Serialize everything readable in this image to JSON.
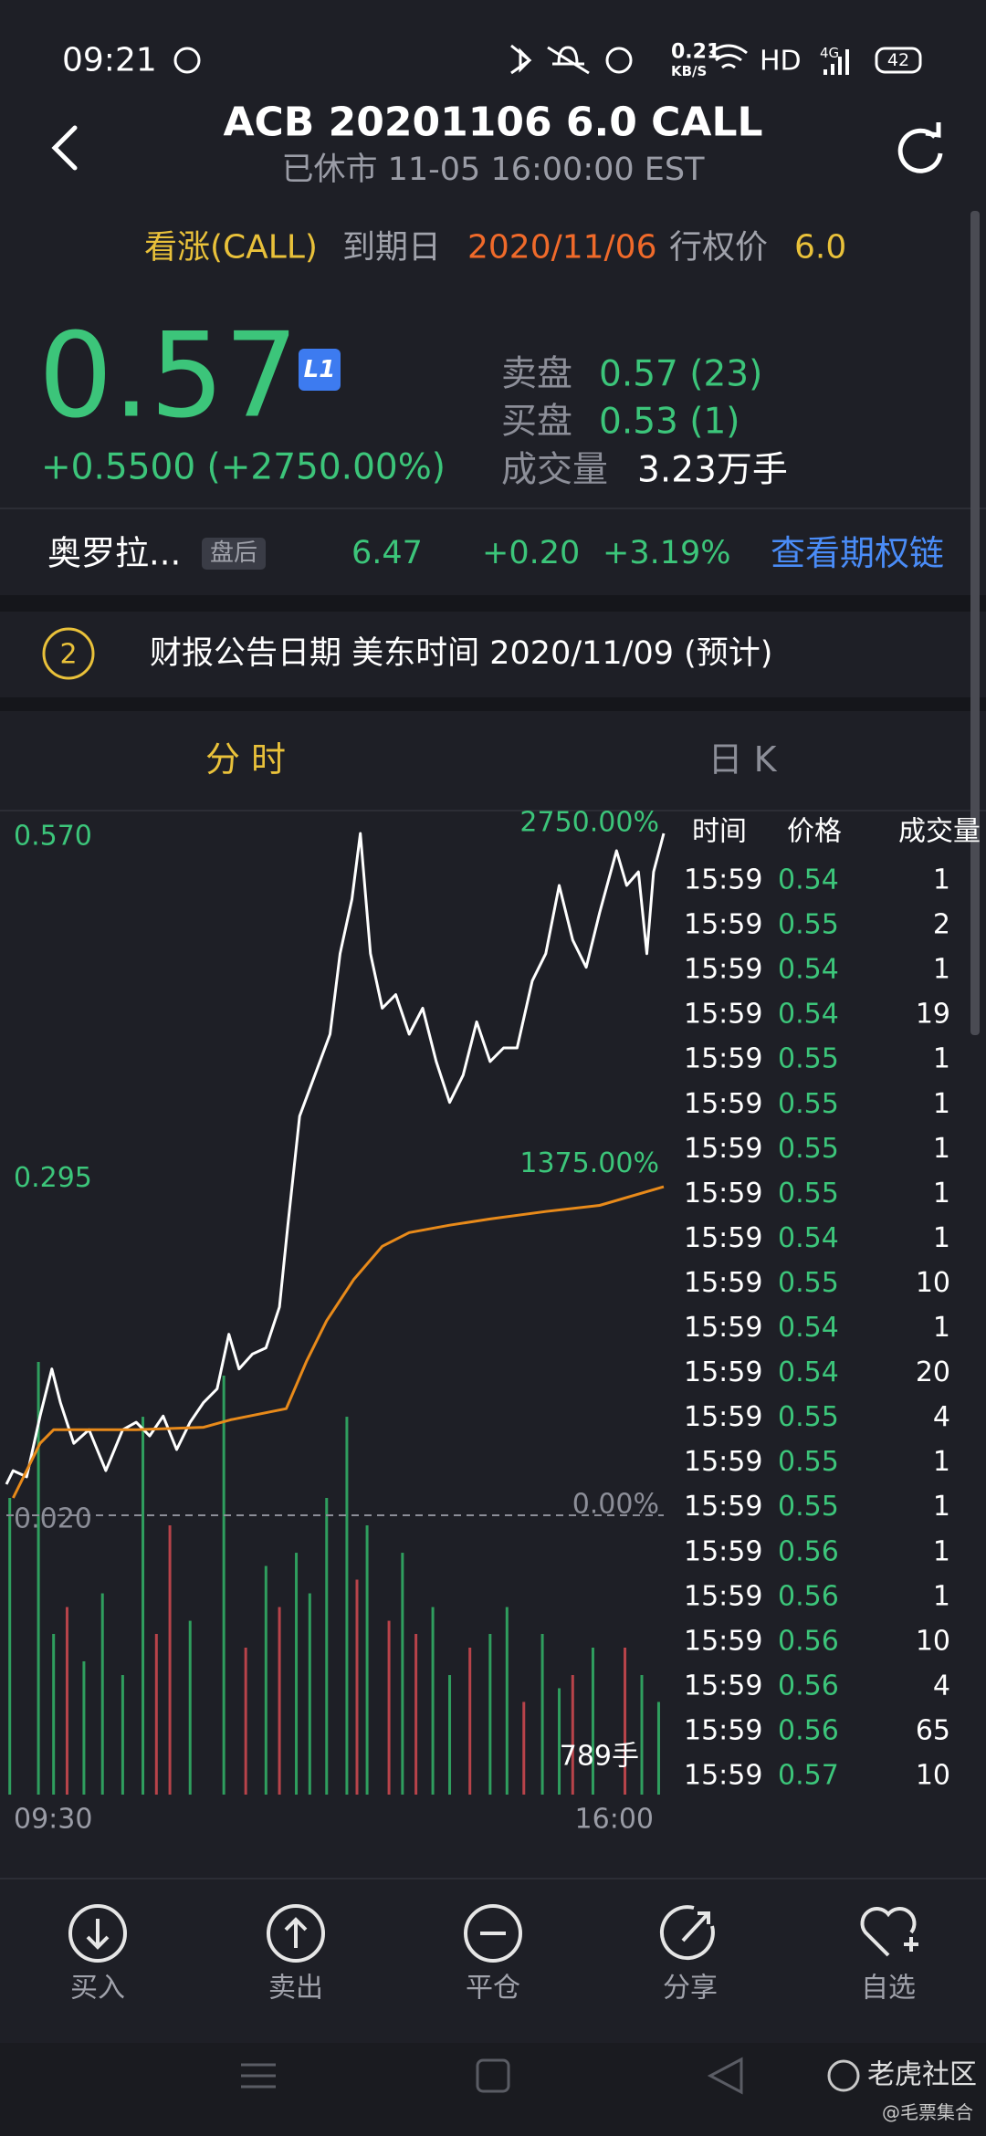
{
  "status_bar": {
    "time": "09:21",
    "speed": "0.21",
    "speed_unit": "KB/S",
    "hd": "HD",
    "network": "4G",
    "battery": "42"
  },
  "header": {
    "title": "ACB 20201106 6.0 CALL",
    "subtitle": "已休市 11-05 16:00:00 EST"
  },
  "option_info": {
    "direction": "看涨(CALL)",
    "expiry_label": "到期日",
    "expiry": "2020/11/06",
    "strike_label": "行权价",
    "strike": "6.0"
  },
  "quote": {
    "price": "0.57",
    "level": "L1",
    "change": "+0.5500 (+2750.00%)",
    "ask_label": "卖盘",
    "ask": "0.57 (23)",
    "bid_label": "买盘",
    "bid": "0.53 (1)",
    "volume_label": "成交量",
    "volume": "3.23万手"
  },
  "underlying": {
    "name": "奥罗拉...",
    "session": "盘后",
    "price": "6.47",
    "change": "+0.20",
    "change_pct": "+3.19%",
    "link": "查看期权链"
  },
  "earnings": {
    "index": "2",
    "text": "财报公告日期 美东时间 2020/11/09 (预计)"
  },
  "tabs": [
    "分 时",
    "日 K"
  ],
  "chart_data": {
    "type": "line",
    "xlim": [
      0,
      390
    ],
    "xticks": [
      {
        "value": 0,
        "label": "09:30"
      },
      {
        "value": 390,
        "label": "16:00"
      }
    ],
    "ylim": [
      0.02,
      0.57
    ],
    "yticks": [
      {
        "value": 0.02,
        "label": "0.020"
      },
      {
        "value": 0.295,
        "label": "0.295"
      },
      {
        "value": 0.57,
        "label": "0.570"
      }
    ],
    "y2lim": [
      0,
      2750
    ],
    "y2ticks": [
      {
        "value": 0,
        "label": "0.00%"
      },
      {
        "value": 1375,
        "label": "1375.00%"
      },
      {
        "value": 2750,
        "label": "2750.00%"
      }
    ],
    "series": [
      {
        "color": "#ffffff",
        "x": [
          0,
          4,
          12,
          20,
          27,
          32,
          40,
          49,
          59,
          69,
          77,
          85,
          93,
          101,
          109,
          117,
          125,
          132,
          138,
          146,
          154,
          162,
          167,
          174,
          180,
          186,
          192,
          198,
          205,
          210,
          216,
          223,
          231,
          239,
          247,
          255,
          263,
          271,
          279,
          287,
          295,
          303,
          312,
          320,
          328,
          336,
          344,
          352,
          362,
          368,
          375,
          380,
          384,
          390
        ],
        "values": [
          0.045,
          0.056,
          0.051,
          0.1,
          0.138,
          0.111,
          0.078,
          0.089,
          0.056,
          0.089,
          0.095,
          0.084,
          0.1,
          0.073,
          0.095,
          0.111,
          0.122,
          0.166,
          0.138,
          0.15,
          0.155,
          0.188,
          0.254,
          0.342,
          0.364,
          0.386,
          0.408,
          0.473,
          0.517,
          0.57,
          0.473,
          0.429,
          0.44,
          0.408,
          0.429,
          0.386,
          0.353,
          0.375,
          0.418,
          0.386,
          0.397,
          0.397,
          0.451,
          0.473,
          0.528,
          0.484,
          0.462,
          0.506,
          0.556,
          0.528,
          0.539,
          0.473,
          0.539,
          0.57
        ]
      },
      {
        "color": "#e88a1a",
        "x": [
          4,
          20,
          28,
          44,
          77,
          117,
          133,
          166,
          178,
          190,
          206,
          223,
          239,
          263,
          287,
          320,
          352,
          390
        ],
        "values": [
          0.034,
          0.078,
          0.089,
          0.089,
          0.089,
          0.091,
          0.097,
          0.106,
          0.144,
          0.177,
          0.21,
          0.237,
          0.248,
          0.254,
          0.259,
          0.265,
          0.27,
          0.285
        ]
      }
    ],
    "volume": {
      "ylim": [
        0,
        789
      ],
      "label": "789手",
      "series": [
        {
          "color": "#2f9e5e",
          "x": [
            2,
            19,
            28,
            46,
            57,
            69,
            81,
            109,
            129,
            154,
            172,
            180,
            190,
            202,
            214,
            235,
            253,
            263,
            287,
            297,
            318,
            328,
            348,
            377,
            387
          ],
          "values": [
            541,
            789,
            293,
            243,
            367,
            218,
            689,
            317,
            764,
            417,
            441,
            367,
            541,
            689,
            491,
            441,
            342,
            218,
            293,
            342,
            293,
            194,
            268,
            218,
            169
          ]
        },
        {
          "color": "#b8434a",
          "x": [
            36,
            89,
            97,
            142,
            162,
            208,
            227,
            243,
            275,
            307,
            336,
            367
          ],
          "values": [
            342,
            293,
            491,
            268,
            342,
            392,
            317,
            293,
            268,
            169,
            218,
            268
          ]
        }
      ]
    }
  },
  "trades": {
    "headers": [
      "时间",
      "价格",
      "成交量"
    ],
    "rows": [
      [
        "15:59",
        0.54,
        1
      ],
      [
        "15:59",
        0.55,
        2
      ],
      [
        "15:59",
        0.54,
        1
      ],
      [
        "15:59",
        0.54,
        19
      ],
      [
        "15:59",
        0.55,
        1
      ],
      [
        "15:59",
        0.55,
        1
      ],
      [
        "15:59",
        0.55,
        1
      ],
      [
        "15:59",
        0.55,
        1
      ],
      [
        "15:59",
        0.54,
        1
      ],
      [
        "15:59",
        0.55,
        10
      ],
      [
        "15:59",
        0.54,
        1
      ],
      [
        "15:59",
        0.54,
        20
      ],
      [
        "15:59",
        0.55,
        4
      ],
      [
        "15:59",
        0.55,
        1
      ],
      [
        "15:59",
        0.55,
        1
      ],
      [
        "15:59",
        0.56,
        1
      ],
      [
        "15:59",
        0.56,
        1
      ],
      [
        "15:59",
        0.56,
        10
      ],
      [
        "15:59",
        0.56,
        4
      ],
      [
        "15:59",
        0.56,
        65
      ],
      [
        "15:59",
        0.57,
        10
      ]
    ]
  },
  "toolbar": [
    "买入",
    "卖出",
    "平仓",
    "分享",
    "自选"
  ],
  "watermark": {
    "brand": "老虎社区",
    "author": "@毛票集合"
  }
}
